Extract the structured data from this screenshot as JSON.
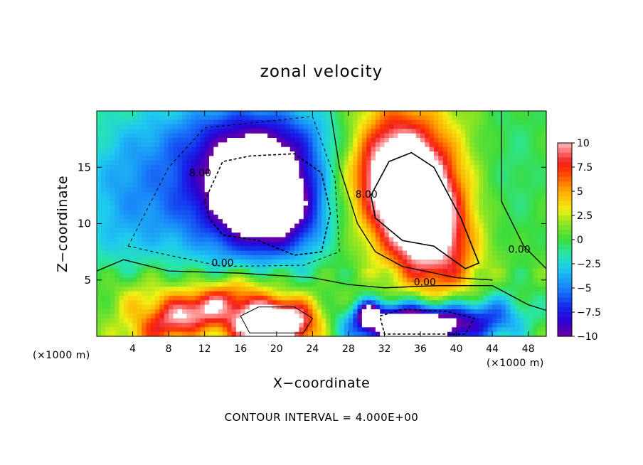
{
  "chart_data": {
    "type": "heatmap",
    "title": "zonal velocity",
    "xlabel": "X−coordinate",
    "ylabel": "Z−coordinate",
    "x_unit_left": "(×1000 m)",
    "x_unit_right": "(×1000 m)",
    "footer": "CONTOUR INTERVAL = 4.000E+00",
    "xlim": [
      0,
      50
    ],
    "ylim": [
      0,
      20
    ],
    "x_ticks": [
      4,
      8,
      12,
      16,
      20,
      24,
      28,
      32,
      36,
      40,
      44,
      48
    ],
    "y_ticks": [
      5,
      10,
      15
    ],
    "colorbar": {
      "range": [
        -10,
        10
      ],
      "ticks": [
        10,
        7.5,
        5,
        2.5,
        0,
        -2.5,
        -5,
        -7.5,
        -10
      ],
      "tick_labels": [
        "10",
        "7.5",
        "5",
        "2.5",
        "0",
        "−2.5",
        "−5",
        "−7.5",
        "−10"
      ]
    },
    "contour_labels": [
      {
        "text": "8.00",
        "x": 11.5,
        "y": 14.2
      },
      {
        "text": "8.00",
        "x": 30.0,
        "y": 12.3
      },
      {
        "text": "0.00",
        "x": 14.0,
        "y": 6.2
      },
      {
        "text": "0.00",
        "x": 36.5,
        "y": 4.5
      },
      {
        "text": "0.00",
        "x": 47.0,
        "y": 7.4
      }
    ],
    "features": [
      {
        "label": "negative jet upper-left",
        "center": [
          18.5,
          12.5
        ],
        "value": -10
      },
      {
        "label": "positive jet upper-right",
        "center": [
          36.0,
          11.5
        ],
        "value": 10
      },
      {
        "label": "surface positive core",
        "center": [
          19.5,
          1.2
        ],
        "value": 10
      },
      {
        "label": "surface negative core",
        "center": [
          35.5,
          1.0
        ],
        "value": -10
      },
      {
        "label": "low-level positive streak",
        "center": [
          10.0,
          2.5
        ],
        "value": 7.5
      }
    ]
  }
}
